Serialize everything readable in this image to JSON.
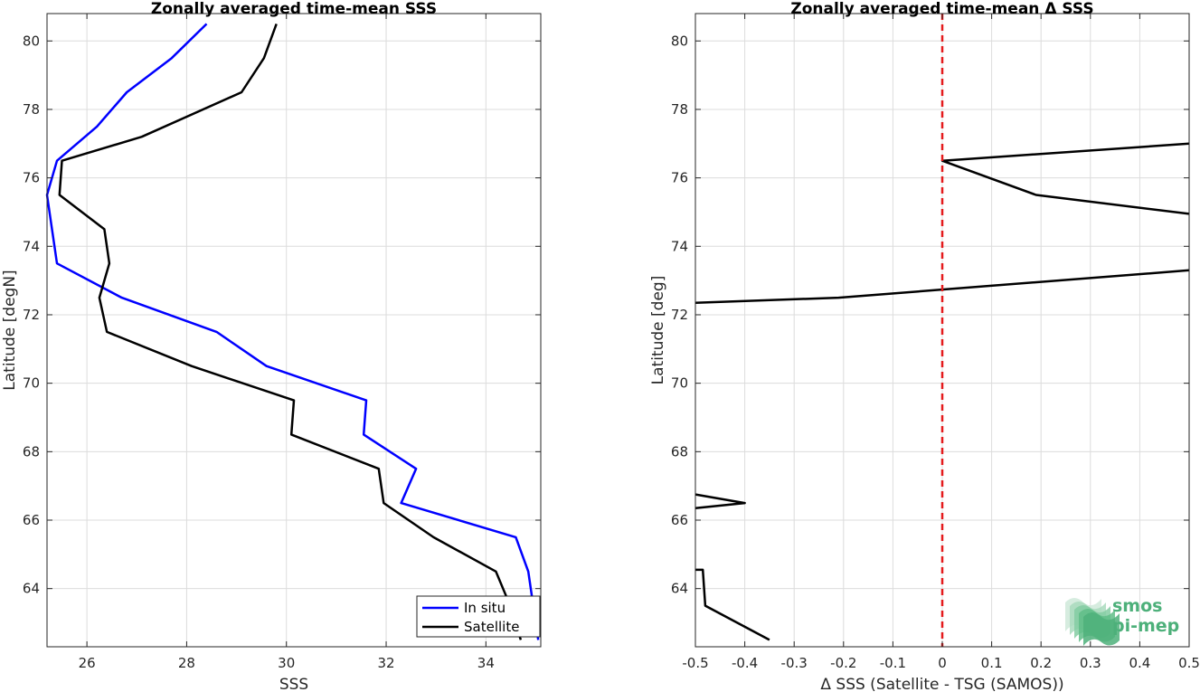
{
  "chart_data": [
    {
      "type": "line",
      "title": "Zonally averaged time-mean SSS",
      "xlabel": "SSS",
      "ylabel": "Latitude [degN]",
      "xlim": [
        25.2,
        35.1
      ],
      "ylim": [
        62.3,
        80.8
      ],
      "xticks": [
        26,
        28,
        30,
        32,
        34
      ],
      "yticks": [
        64,
        66,
        68,
        70,
        72,
        74,
        76,
        78,
        80
      ],
      "grid": true,
      "legend_position": "bottom-right",
      "series": [
        {
          "name": "In situ",
          "color": "#0000ff",
          "points": [
            [
              28.4,
              80.5
            ],
            [
              27.7,
              79.5
            ],
            [
              26.8,
              78.5
            ],
            [
              26.2,
              77.5
            ],
            [
              25.4,
              76.5
            ],
            [
              25.2,
              75.5
            ],
            [
              25.3,
              74.5
            ],
            [
              25.4,
              73.5
            ],
            [
              26.7,
              72.5
            ],
            [
              28.6,
              71.5
            ],
            [
              29.6,
              70.5
            ],
            [
              31.6,
              69.5
            ],
            [
              31.55,
              68.5
            ],
            [
              32.6,
              67.5
            ],
            [
              32.3,
              66.5
            ],
            [
              34.6,
              65.5
            ],
            [
              34.85,
              64.5
            ],
            [
              35.05,
              62.5
            ]
          ]
        },
        {
          "name": "Satellite",
          "color": "#000000",
          "points": [
            [
              29.8,
              80.5
            ],
            [
              29.55,
              79.5
            ],
            [
              29.1,
              78.5
            ],
            [
              27.1,
              77.2
            ],
            [
              25.5,
              76.5
            ],
            [
              25.45,
              75.5
            ],
            [
              26.35,
              74.5
            ],
            [
              26.45,
              73.5
            ],
            [
              26.25,
              72.5
            ],
            [
              26.4,
              71.5
            ],
            [
              28.1,
              70.5
            ],
            [
              30.15,
              69.5
            ],
            [
              30.1,
              68.5
            ],
            [
              31.85,
              67.5
            ],
            [
              31.95,
              66.5
            ],
            [
              32.95,
              65.5
            ],
            [
              34.2,
              64.5
            ],
            [
              34.4,
              63.8
            ],
            [
              34.7,
              62.5
            ]
          ]
        }
      ]
    },
    {
      "type": "line",
      "title": "Zonally averaged time-mean Δ SSS",
      "xlabel": "Δ SSS (Satellite - TSG (SAMOS))",
      "ylabel": "Latitude [deg]",
      "xlim": [
        -0.5,
        0.5
      ],
      "ylim": [
        62.3,
        80.8
      ],
      "xticks": [
        -0.5,
        -0.4,
        -0.3,
        -0.2,
        -0.1,
        0,
        0.1,
        0.2,
        0.3,
        0.4,
        0.5
      ],
      "yticks": [
        64,
        66,
        68,
        70,
        72,
        74,
        76,
        78,
        80
      ],
      "grid": true,
      "reference_line": {
        "x": 0,
        "color": "#e41a1c",
        "style": "dashed"
      },
      "series": [
        {
          "color": "#000000",
          "points": [
            [
              0.5,
              77.0
            ],
            [
              0.0,
              76.5
            ],
            [
              0.19,
              75.5
            ],
            [
              0.5,
              74.95
            ]
          ]
        },
        {
          "color": "#000000",
          "points": [
            [
              0.5,
              73.3
            ],
            [
              -0.21,
              72.5
            ],
            [
              -0.5,
              72.35
            ]
          ]
        },
        {
          "color": "#000000",
          "points": [
            [
              -0.5,
              66.75
            ],
            [
              -0.4,
              66.5
            ],
            [
              -0.5,
              66.35
            ]
          ]
        },
        {
          "color": "#000000",
          "points": [
            [
              -0.5,
              64.55
            ],
            [
              -0.485,
              64.55
            ],
            [
              -0.48,
              63.5
            ],
            [
              -0.35,
              62.5
            ]
          ]
        }
      ]
    }
  ],
  "logo": {
    "line1": "smos",
    "line2": "pi-mep",
    "color": "#4db07a"
  }
}
